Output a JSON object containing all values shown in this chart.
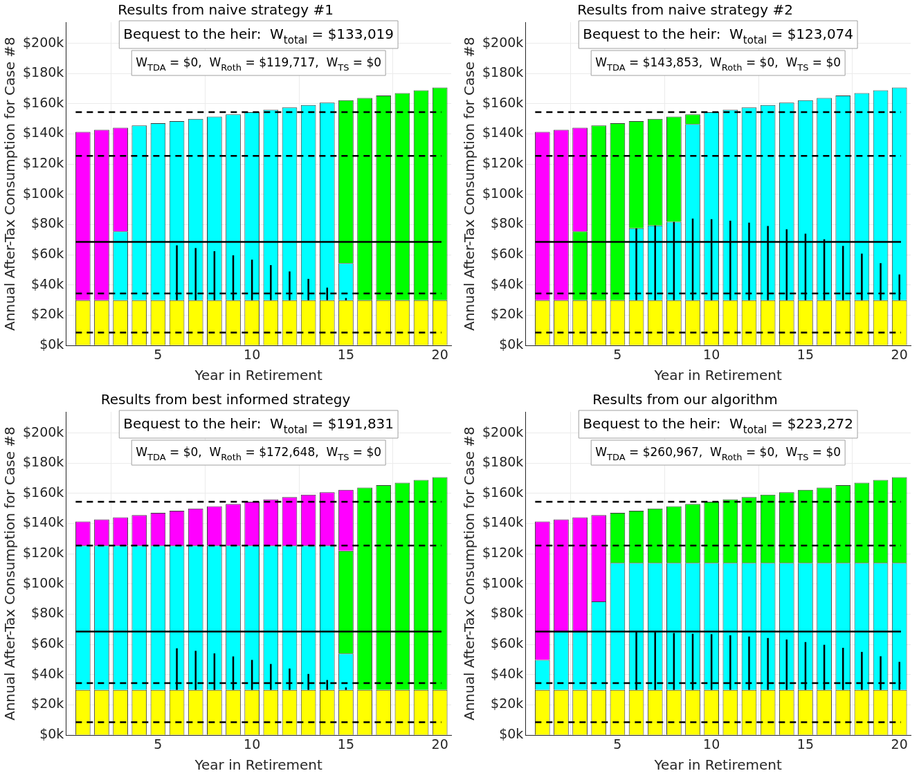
{
  "chart_data": [
    {
      "type": "bar",
      "title": "Results from naive strategy #1",
      "xlabel": "Year in Retirement",
      "ylabel": "Annual After-Tax Consumption for Case #8",
      "annotations": [
        "Bequest to the heir:  W$_{total}$ = $133,019",
        "W$_{TDA}$ = $0,  W$_{Roth}$ = $119,717,  W$_{TS}$ = $0"
      ],
      "stacked": true,
      "grid": true,
      "legend": false,
      "x": [
        1,
        2,
        3,
        4,
        5,
        6,
        7,
        8,
        9,
        10,
        11,
        12,
        13,
        14,
        15,
        16,
        17,
        18,
        19,
        20
      ],
      "xlim": [
        0.1,
        20.6
      ],
      "xticks": [
        5,
        10,
        15,
        20
      ],
      "ylim": [
        0,
        214
      ],
      "yticks": [
        {
          "value": 0,
          "label": "$0k"
        },
        {
          "value": 20,
          "label": "$20k"
        },
        {
          "value": 40,
          "label": "$40k"
        },
        {
          "value": 60,
          "label": "$60k"
        },
        {
          "value": 80,
          "label": "$80k"
        },
        {
          "value": 100,
          "label": "$100k"
        },
        {
          "value": 120,
          "label": "$120k"
        },
        {
          "value": 140,
          "label": "$140k"
        },
        {
          "value": 160,
          "label": "$160k"
        },
        {
          "value": 180,
          "label": "$180k"
        },
        {
          "value": 200,
          "label": "$200k"
        }
      ],
      "series": [
        {
          "color": "#ffff00",
          "values": [
            30,
            30,
            30,
            30,
            30,
            30,
            30,
            30,
            30,
            30,
            30,
            30,
            30,
            30,
            30,
            30,
            30,
            30,
            30,
            30
          ],
          "errors": [
            null,
            null,
            null,
            null,
            null,
            [
              30,
              66.3
            ],
            [
              30,
              64.5
            ],
            [
              30,
              62.4
            ],
            [
              30,
              59.7
            ],
            [
              30,
              56.8
            ],
            [
              30,
              53.2
            ],
            [
              30,
              49.0
            ],
            [
              30,
              44.1
            ],
            [
              30,
              38.3
            ],
            [
              30,
              31.4
            ],
            null,
            null,
            null,
            null,
            null
          ]
        },
        {
          "color": "#00ffff",
          "values": [
            null,
            null,
            45.5,
            115.6,
            117.1,
            118.5,
            120.0,
            121.5,
            123.0,
            124.5,
            126.0,
            127.6,
            129.1,
            130.7,
            24.5,
            null,
            null,
            null,
            null,
            null
          ]
        },
        {
          "color": "#00ff00",
          "values": [
            null,
            null,
            null,
            null,
            null,
            null,
            null,
            null,
            null,
            null,
            null,
            null,
            null,
            null,
            107.8,
            133.9,
            135.5,
            137.1,
            138.9,
            140.7
          ]
        },
        {
          "color": "#ff00ff",
          "values": [
            111.4,
            112.8,
            68.7,
            null,
            null,
            null,
            null,
            null,
            null,
            null,
            null,
            null,
            null,
            null,
            null,
            null,
            null,
            null,
            null,
            null
          ]
        }
      ],
      "ref_lines": [
        {
          "axis": "y",
          "value": 8.6,
          "color": "#000000",
          "line_style": "dashed"
        },
        {
          "axis": "y",
          "value": 34.4,
          "color": "#000000",
          "line_style": "dashed"
        },
        {
          "axis": "y",
          "value": 68.6,
          "color": "#000000",
          "line_style": "solid"
        },
        {
          "axis": "y",
          "value": 125.5,
          "color": "#000000",
          "line_style": "dashed"
        },
        {
          "axis": "y",
          "value": 154.5,
          "color": "#000000",
          "line_style": "dashed"
        }
      ]
    },
    {
      "type": "bar",
      "title": "Results from naive strategy #2",
      "xlabel": "Year in Retirement",
      "ylabel": "Annual After-Tax Consumption for Case #8",
      "annotations": [
        "Bequest to the heir:  W$_{total}$ = $123,074",
        "W$_{TDA}$ = $143,853,  W$_{Roth}$ = $0,  W$_{TS}$ = $0"
      ],
      "stacked": true,
      "grid": true,
      "legend": false,
      "x": [
        1,
        2,
        3,
        4,
        5,
        6,
        7,
        8,
        9,
        10,
        11,
        12,
        13,
        14,
        15,
        16,
        17,
        18,
        19,
        20
      ],
      "xlim": [
        0.1,
        20.6
      ],
      "xticks": [
        5,
        10,
        15,
        20
      ],
      "ylim": [
        0,
        214
      ],
      "yticks": [
        {
          "value": 0,
          "label": "$0k"
        },
        {
          "value": 20,
          "label": "$20k"
        },
        {
          "value": 40,
          "label": "$40k"
        },
        {
          "value": 60,
          "label": "$60k"
        },
        {
          "value": 80,
          "label": "$80k"
        },
        {
          "value": 100,
          "label": "$100k"
        },
        {
          "value": 120,
          "label": "$120k"
        },
        {
          "value": 140,
          "label": "$140k"
        },
        {
          "value": 160,
          "label": "$160k"
        },
        {
          "value": 180,
          "label": "$180k"
        },
        {
          "value": 200,
          "label": "$200k"
        }
      ],
      "series": [
        {
          "color": "#ffff00",
          "values": [
            30,
            30,
            30,
            30,
            30,
            30,
            30,
            30,
            30,
            30,
            30,
            30,
            30,
            30,
            30,
            30,
            30,
            30,
            30,
            30
          ],
          "errors": [
            null,
            null,
            null,
            null,
            null,
            [
              30,
              77.6
            ],
            [
              30,
              79.5
            ],
            [
              30,
              81.8
            ],
            [
              30,
              84.0
            ],
            [
              30,
              83.6
            ],
            [
              30,
              82.6
            ],
            [
              30,
              81.3
            ],
            [
              30,
              79.1
            ],
            [
              30,
              76.9
            ],
            [
              30,
              74.0
            ],
            [
              30,
              70.3
            ],
            [
              30,
              65.9
            ],
            [
              30,
              60.8
            ],
            [
              30,
              54.5
            ],
            [
              30,
              47.0
            ]
          ]
        },
        {
          "color": "#00ffff",
          "values": [
            null,
            null,
            null,
            null,
            null,
            47.6,
            49.5,
            51.8,
            116.5,
            124.5,
            126.0,
            127.6,
            129.1,
            130.7,
            132.3,
            133.9,
            135.5,
            137.1,
            138.9,
            140.7
          ]
        },
        {
          "color": "#00ff00",
          "values": [
            null,
            null,
            45.5,
            115.6,
            117.1,
            70.9,
            70.5,
            69.7,
            6.5,
            null,
            null,
            null,
            null,
            null,
            null,
            null,
            null,
            null,
            null,
            null
          ]
        },
        {
          "color": "#ff00ff",
          "values": [
            111.4,
            112.8,
            68.7,
            null,
            null,
            null,
            null,
            null,
            null,
            null,
            null,
            null,
            null,
            null,
            null,
            null,
            null,
            null,
            null,
            null
          ]
        }
      ],
      "ref_lines": [
        {
          "axis": "y",
          "value": 8.6,
          "color": "#000000",
          "line_style": "dashed"
        },
        {
          "axis": "y",
          "value": 34.4,
          "color": "#000000",
          "line_style": "dashed"
        },
        {
          "axis": "y",
          "value": 68.6,
          "color": "#000000",
          "line_style": "solid"
        },
        {
          "axis": "y",
          "value": 125.5,
          "color": "#000000",
          "line_style": "dashed"
        },
        {
          "axis": "y",
          "value": 154.5,
          "color": "#000000",
          "line_style": "dashed"
        }
      ]
    },
    {
      "type": "bar",
      "title": "Results from best informed strategy",
      "xlabel": "Year in Retirement",
      "ylabel": "Annual After-Tax Consumption for Case #8",
      "annotations": [
        "Bequest to the heir:  W$_{total}$ = $191,831",
        "W$_{TDA}$ = $0,  W$_{Roth}$ = $172,648,  W$_{TS}$ = $0"
      ],
      "stacked": true,
      "grid": true,
      "legend": false,
      "x": [
        1,
        2,
        3,
        4,
        5,
        6,
        7,
        8,
        9,
        10,
        11,
        12,
        13,
        14,
        15,
        16,
        17,
        18,
        19,
        20
      ],
      "xlim": [
        0.1,
        20.6
      ],
      "xticks": [
        5,
        10,
        15,
        20
      ],
      "ylim": [
        0,
        214
      ],
      "yticks": [
        {
          "value": 0,
          "label": "$0k"
        },
        {
          "value": 20,
          "label": "$20k"
        },
        {
          "value": 40,
          "label": "$40k"
        },
        {
          "value": 60,
          "label": "$60k"
        },
        {
          "value": 80,
          "label": "$80k"
        },
        {
          "value": 100,
          "label": "$100k"
        },
        {
          "value": 120,
          "label": "$120k"
        },
        {
          "value": 140,
          "label": "$140k"
        },
        {
          "value": 160,
          "label": "$160k"
        },
        {
          "value": 180,
          "label": "$180k"
        },
        {
          "value": 200,
          "label": "$200k"
        }
      ],
      "series": [
        {
          "color": "#ffff00",
          "values": [
            30,
            30,
            30,
            30,
            30,
            30,
            30,
            30,
            30,
            30,
            30,
            30,
            30,
            30,
            30,
            30,
            30,
            30,
            30,
            30
          ],
          "errors": [
            null,
            null,
            null,
            null,
            null,
            [
              30,
              57.5
            ],
            [
              30,
              55.8
            ],
            [
              30,
              54.1
            ],
            [
              30,
              52.1
            ],
            [
              30,
              49.8
            ],
            [
              30,
              47.1
            ],
            [
              30,
              44.1
            ],
            [
              30,
              40.5
            ],
            [
              30,
              36.5
            ],
            [
              30,
              31.6
            ],
            null,
            null,
            null,
            null,
            null
          ]
        },
        {
          "color": "#00ffff",
          "values": [
            95.5,
            95.5,
            95.5,
            95.5,
            95.5,
            95.5,
            95.5,
            95.5,
            95.5,
            95.5,
            95.5,
            95.5,
            95.5,
            95.5,
            24.0,
            null,
            null,
            null,
            null,
            null
          ]
        },
        {
          "color": "#00ff00",
          "values": [
            null,
            null,
            null,
            null,
            null,
            null,
            null,
            null,
            null,
            null,
            null,
            null,
            null,
            null,
            68.0,
            133.9,
            135.5,
            137.1,
            138.9,
            140.7
          ]
        },
        {
          "color": "#ff00ff",
          "values": [
            15.9,
            17.3,
            18.7,
            20.1,
            21.6,
            23.0,
            24.5,
            26.0,
            27.5,
            29.0,
            30.5,
            32.1,
            33.6,
            35.2,
            40.3,
            null,
            null,
            null,
            null,
            null
          ]
        }
      ],
      "ref_lines": [
        {
          "axis": "y",
          "value": 8.6,
          "color": "#000000",
          "line_style": "dashed"
        },
        {
          "axis": "y",
          "value": 34.4,
          "color": "#000000",
          "line_style": "dashed"
        },
        {
          "axis": "y",
          "value": 68.6,
          "color": "#000000",
          "line_style": "solid"
        },
        {
          "axis": "y",
          "value": 125.5,
          "color": "#000000",
          "line_style": "dashed"
        },
        {
          "axis": "y",
          "value": 154.5,
          "color": "#000000",
          "line_style": "dashed"
        }
      ]
    },
    {
      "type": "bar",
      "title": "Results from our algorithm",
      "xlabel": "Year in Retirement",
      "ylabel": "Annual After-Tax Consumption for Case #8",
      "annotations": [
        "Bequest to the heir:  W$_{total}$ = $223,272",
        "W$_{TDA}$ = $260,967,  W$_{Roth}$ = $0,  W$_{TS}$ = $0"
      ],
      "stacked": true,
      "grid": true,
      "legend": false,
      "x": [
        1,
        2,
        3,
        4,
        5,
        6,
        7,
        8,
        9,
        10,
        11,
        12,
        13,
        14,
        15,
        16,
        17,
        18,
        19,
        20
      ],
      "xlim": [
        0.1,
        20.6
      ],
      "xticks": [
        5,
        10,
        15,
        20
      ],
      "ylim": [
        0,
        214
      ],
      "yticks": [
        {
          "value": 0,
          "label": "$0k"
        },
        {
          "value": 20,
          "label": "$20k"
        },
        {
          "value": 40,
          "label": "$40k"
        },
        {
          "value": 60,
          "label": "$60k"
        },
        {
          "value": 80,
          "label": "$80k"
        },
        {
          "value": 100,
          "label": "$100k"
        },
        {
          "value": 120,
          "label": "$120k"
        },
        {
          "value": 140,
          "label": "$140k"
        },
        {
          "value": 160,
          "label": "$160k"
        },
        {
          "value": 180,
          "label": "$180k"
        },
        {
          "value": 200,
          "label": "$200k"
        }
      ],
      "series": [
        {
          "color": "#ffff00",
          "values": [
            30,
            30,
            30,
            30,
            30,
            30,
            30,
            30,
            30,
            30,
            30,
            30,
            30,
            30,
            30,
            30,
            30,
            30,
            30,
            30
          ],
          "errors": [
            null,
            null,
            null,
            null,
            null,
            [
              30,
              68.3
            ],
            [
              30,
              68.2
            ],
            [
              30,
              67.6
            ],
            [
              30,
              67.1
            ],
            [
              30,
              66.8
            ],
            [
              30,
              66.1
            ],
            [
              30,
              65.3
            ],
            [
              30,
              64.3
            ],
            [
              30,
              63.3
            ],
            [
              30,
              61.6
            ],
            [
              30,
              59.8
            ],
            [
              30,
              57.8
            ],
            [
              30,
              55.1
            ],
            [
              30,
              52.2
            ],
            [
              30,
              48.5
            ]
          ]
        },
        {
          "color": "#00ffff",
          "values": [
            19.8,
            38.5,
            38.5,
            58.5,
            84,
            84,
            84,
            84,
            84,
            84,
            84,
            84,
            84,
            84,
            84,
            84,
            84,
            84,
            84,
            84
          ]
        },
        {
          "color": "#00ff00",
          "values": [
            null,
            null,
            null,
            null,
            33.1,
            34.5,
            36.0,
            37.5,
            39.0,
            40.5,
            42.0,
            43.6,
            45.1,
            46.7,
            48.3,
            49.9,
            51.5,
            53.1,
            54.9,
            56.7
          ]
        },
        {
          "color": "#ff00ff",
          "values": [
            91.6,
            74.3,
            75.7,
            57.1,
            null,
            null,
            null,
            null,
            null,
            null,
            null,
            null,
            null,
            null,
            null,
            null,
            null,
            null,
            null,
            null
          ]
        }
      ],
      "ref_lines": [
        {
          "axis": "y",
          "value": 8.6,
          "color": "#000000",
          "line_style": "dashed"
        },
        {
          "axis": "y",
          "value": 34.4,
          "color": "#000000",
          "line_style": "dashed"
        },
        {
          "axis": "y",
          "value": 68.6,
          "color": "#000000",
          "line_style": "solid"
        },
        {
          "axis": "y",
          "value": 125.5,
          "color": "#000000",
          "line_style": "dashed"
        },
        {
          "axis": "y",
          "value": 154.5,
          "color": "#000000",
          "line_style": "dashed"
        }
      ]
    }
  ]
}
